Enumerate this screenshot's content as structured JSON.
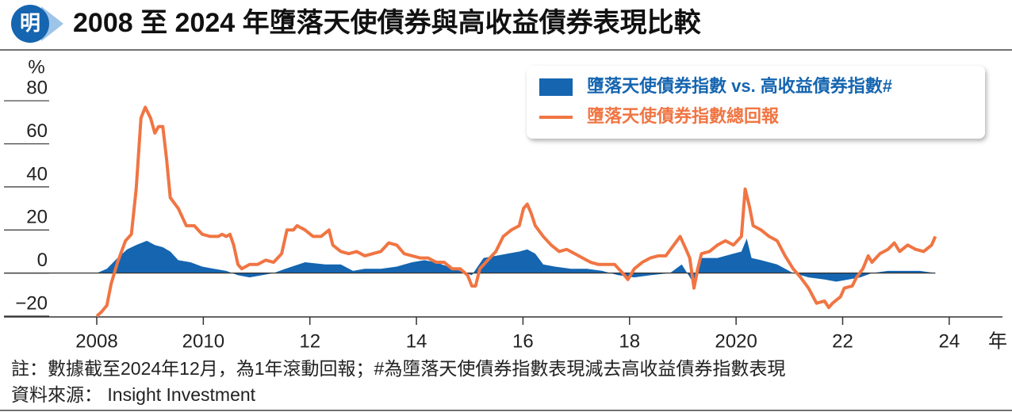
{
  "logo": "明",
  "chart_data": {
    "type": "area-line",
    "title": "2008 至 2024 年墮落天使債券與高收益債券表現比較",
    "y_label": "%",
    "x_label": "年",
    "note": "註：數據截至2024年12月，為1年滾動回報；#為墮落天使債券指數表現減去高收益債券指數表現",
    "source": "資料來源： Insight Investment",
    "xlim": [
      2008,
      2025
    ],
    "xticks": [
      2008,
      2010,
      {
        "value": 2012,
        "label": "12"
      },
      {
        "value": 2014,
        "label": "14"
      },
      {
        "value": 2016,
        "label": "16"
      },
      {
        "value": 2018,
        "label": "18"
      },
      2020,
      {
        "value": 2022,
        "label": "22"
      },
      {
        "value": 2024,
        "label": "24"
      }
    ],
    "ylim": [
      -20,
      90
    ],
    "yticks": [
      {
        "value": -20,
        "label": "−20"
      },
      0,
      20,
      40,
      60,
      80
    ],
    "legend": "top-right",
    "series": [
      {
        "name": "墮落天使債券指數 vs. 高收益債券指數#",
        "kind": "area",
        "color": "#1565b0",
        "x": [
          2008.0,
          2008.19,
          2008.39,
          2008.57,
          2008.74,
          2008.94,
          2009.09,
          2009.24,
          2009.38,
          2009.53,
          2009.76,
          2009.98,
          2010.2,
          2010.43,
          2010.65,
          2010.87,
          2011.1,
          2011.32,
          2011.54,
          2011.91,
          2012.29,
          2012.58,
          2012.81,
          2013.03,
          2013.33,
          2013.63,
          2013.92,
          2014.15,
          2014.37,
          2014.59,
          2014.82,
          2015.04,
          2015.26,
          2015.49,
          2015.71,
          2015.93,
          2016.08,
          2016.23,
          2016.38,
          2016.6,
          2016.9,
          2017.2,
          2017.49,
          2017.79,
          2018.09,
          2018.39,
          2018.76,
          2018.98,
          2019.21,
          2019.35,
          2019.65,
          2019.95,
          2020.1,
          2020.2,
          2020.29,
          2020.47,
          2020.77,
          2021.07,
          2021.36,
          2021.66,
          2021.88,
          2022.11,
          2022.33,
          2022.55,
          2022.85,
          2023.15,
          2023.45,
          2023.74
        ],
        "values": [
          0,
          2,
          7,
          11,
          13,
          15,
          13,
          12,
          10,
          6,
          5,
          3,
          2,
          1,
          -1,
          -2,
          -1,
          0,
          2,
          5,
          4,
          4,
          1,
          2,
          2,
          3,
          5,
          6,
          5,
          3,
          1,
          -1,
          7,
          8,
          9,
          10,
          11,
          9,
          4,
          3,
          2,
          2,
          1,
          -1,
          -2,
          -1,
          0,
          4,
          -5,
          7,
          7,
          9,
          10,
          16,
          7,
          6,
          4,
          0,
          -2,
          -3,
          -4,
          -3,
          -2,
          0,
          1,
          1,
          1,
          0
        ]
      },
      {
        "name": "墮落天使債券指數總回報",
        "kind": "line",
        "color": "#f07543",
        "x": [
          2008.0,
          2008.09,
          2008.19,
          2008.27,
          2008.39,
          2008.54,
          2008.65,
          2008.74,
          2008.83,
          2008.91,
          2009.01,
          2009.09,
          2009.16,
          2009.24,
          2009.31,
          2009.38,
          2009.53,
          2009.68,
          2009.83,
          2009.98,
          2010.13,
          2010.28,
          2010.35,
          2010.43,
          2010.5,
          2010.57,
          2010.65,
          2010.72,
          2010.87,
          2011.02,
          2011.17,
          2011.32,
          2011.47,
          2011.57,
          2011.69,
          2011.76,
          2011.91,
          2012.06,
          2012.21,
          2012.36,
          2012.43,
          2012.58,
          2012.73,
          2012.88,
          2013.03,
          2013.18,
          2013.33,
          2013.48,
          2013.63,
          2013.77,
          2013.92,
          2014.07,
          2014.22,
          2014.37,
          2014.52,
          2014.67,
          2014.82,
          2014.96,
          2015.04,
          2015.11,
          2015.19,
          2015.34,
          2015.49,
          2015.63,
          2015.78,
          2015.93,
          2016.01,
          2016.08,
          2016.15,
          2016.23,
          2016.38,
          2016.53,
          2016.68,
          2016.82,
          2016.97,
          2017.12,
          2017.27,
          2017.42,
          2017.57,
          2017.72,
          2017.87,
          2017.97,
          2018.09,
          2018.24,
          2018.39,
          2018.54,
          2018.68,
          2018.83,
          2018.95,
          2019.06,
          2019.13,
          2019.21,
          2019.28,
          2019.35,
          2019.5,
          2019.65,
          2019.8,
          2019.95,
          2020.1,
          2020.17,
          2020.25,
          2020.32,
          2020.47,
          2020.62,
          2020.77,
          2020.92,
          2021.07,
          2021.21,
          2021.36,
          2021.51,
          2021.66,
          2021.74,
          2021.81,
          2021.96,
          2022.03,
          2022.18,
          2022.26,
          2022.38,
          2022.48,
          2022.55,
          2022.7,
          2022.85,
          2022.97,
          2023.07,
          2023.22,
          2023.37,
          2023.52,
          2023.67,
          2023.74
        ],
        "values": [
          -20,
          -18,
          -15,
          -5,
          5,
          15,
          18,
          39,
          72,
          77,
          72,
          65,
          68,
          68,
          53,
          35,
          30,
          22,
          22,
          18,
          17,
          17,
          18,
          17,
          18,
          13,
          4,
          2,
          4,
          4,
          6,
          5,
          9,
          20,
          20,
          22,
          20,
          17,
          17,
          20,
          13,
          10,
          9,
          10,
          8,
          9,
          10,
          14,
          13,
          9,
          8,
          7,
          7,
          5,
          5,
          2,
          2,
          -1,
          -6,
          -6,
          2,
          6,
          10,
          17,
          20,
          22,
          30,
          32,
          28,
          22,
          17,
          13,
          10,
          11,
          9,
          7,
          5,
          4,
          4,
          4,
          0,
          -3,
          2,
          5,
          7,
          8,
          8,
          13,
          17,
          11,
          7,
          -7,
          2,
          9,
          10,
          13,
          15,
          13,
          17,
          39,
          31,
          22,
          20,
          17,
          15,
          8,
          2,
          -2,
          -7,
          -14,
          -13,
          -16,
          -14,
          -11,
          -7,
          -6,
          -2,
          2,
          8,
          5,
          9,
          11,
          14,
          10,
          13,
          11,
          10,
          13,
          17
        ]
      }
    ]
  }
}
